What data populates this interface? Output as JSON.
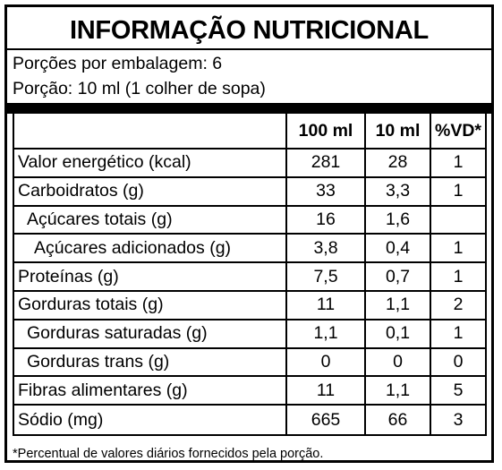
{
  "title": "INFORMAÇÃO NUTRICIONAL",
  "servings_per_package": "Porções por embalagem: 6",
  "serving_size": "Porção: 10 ml (1 colher de sopa)",
  "columns": {
    "per_100": "100 ml",
    "per_portion": "10 ml",
    "dv": "%VD*"
  },
  "rows": [
    {
      "name": "Valor energético (kcal)",
      "per_100": "281",
      "per_portion": "28",
      "dv": "1"
    },
    {
      "name": "Carboidratos (g)",
      "per_100": "33",
      "per_portion": "3,3",
      "dv": "1"
    },
    {
      "name": "Açúcares totais (g)",
      "per_100": "16",
      "per_portion": "1,6",
      "dv": ""
    },
    {
      "name": "Açúcares adicionados (g)",
      "per_100": "3,8",
      "per_portion": "0,4",
      "dv": "1"
    },
    {
      "name": "Proteínas (g)",
      "per_100": "7,5",
      "per_portion": "0,7",
      "dv": "1"
    },
    {
      "name": "Gorduras totais (g)",
      "per_100": "11",
      "per_portion": "1,1",
      "dv": "2"
    },
    {
      "name": "Gorduras saturadas (g)",
      "per_100": "1,1",
      "per_portion": "0,1",
      "dv": "1"
    },
    {
      "name": "Gorduras trans (g)",
      "per_100": "0",
      "per_portion": "0",
      "dv": "0"
    },
    {
      "name": "Fibras alimentares (g)",
      "per_100": "11",
      "per_portion": "1,1",
      "dv": "5"
    },
    {
      "name": "Sódio (mg)",
      "per_100": "665",
      "per_portion": "66",
      "dv": "3"
    }
  ],
  "footnote": "*Percentual de valores diários fornecidos pela porção."
}
